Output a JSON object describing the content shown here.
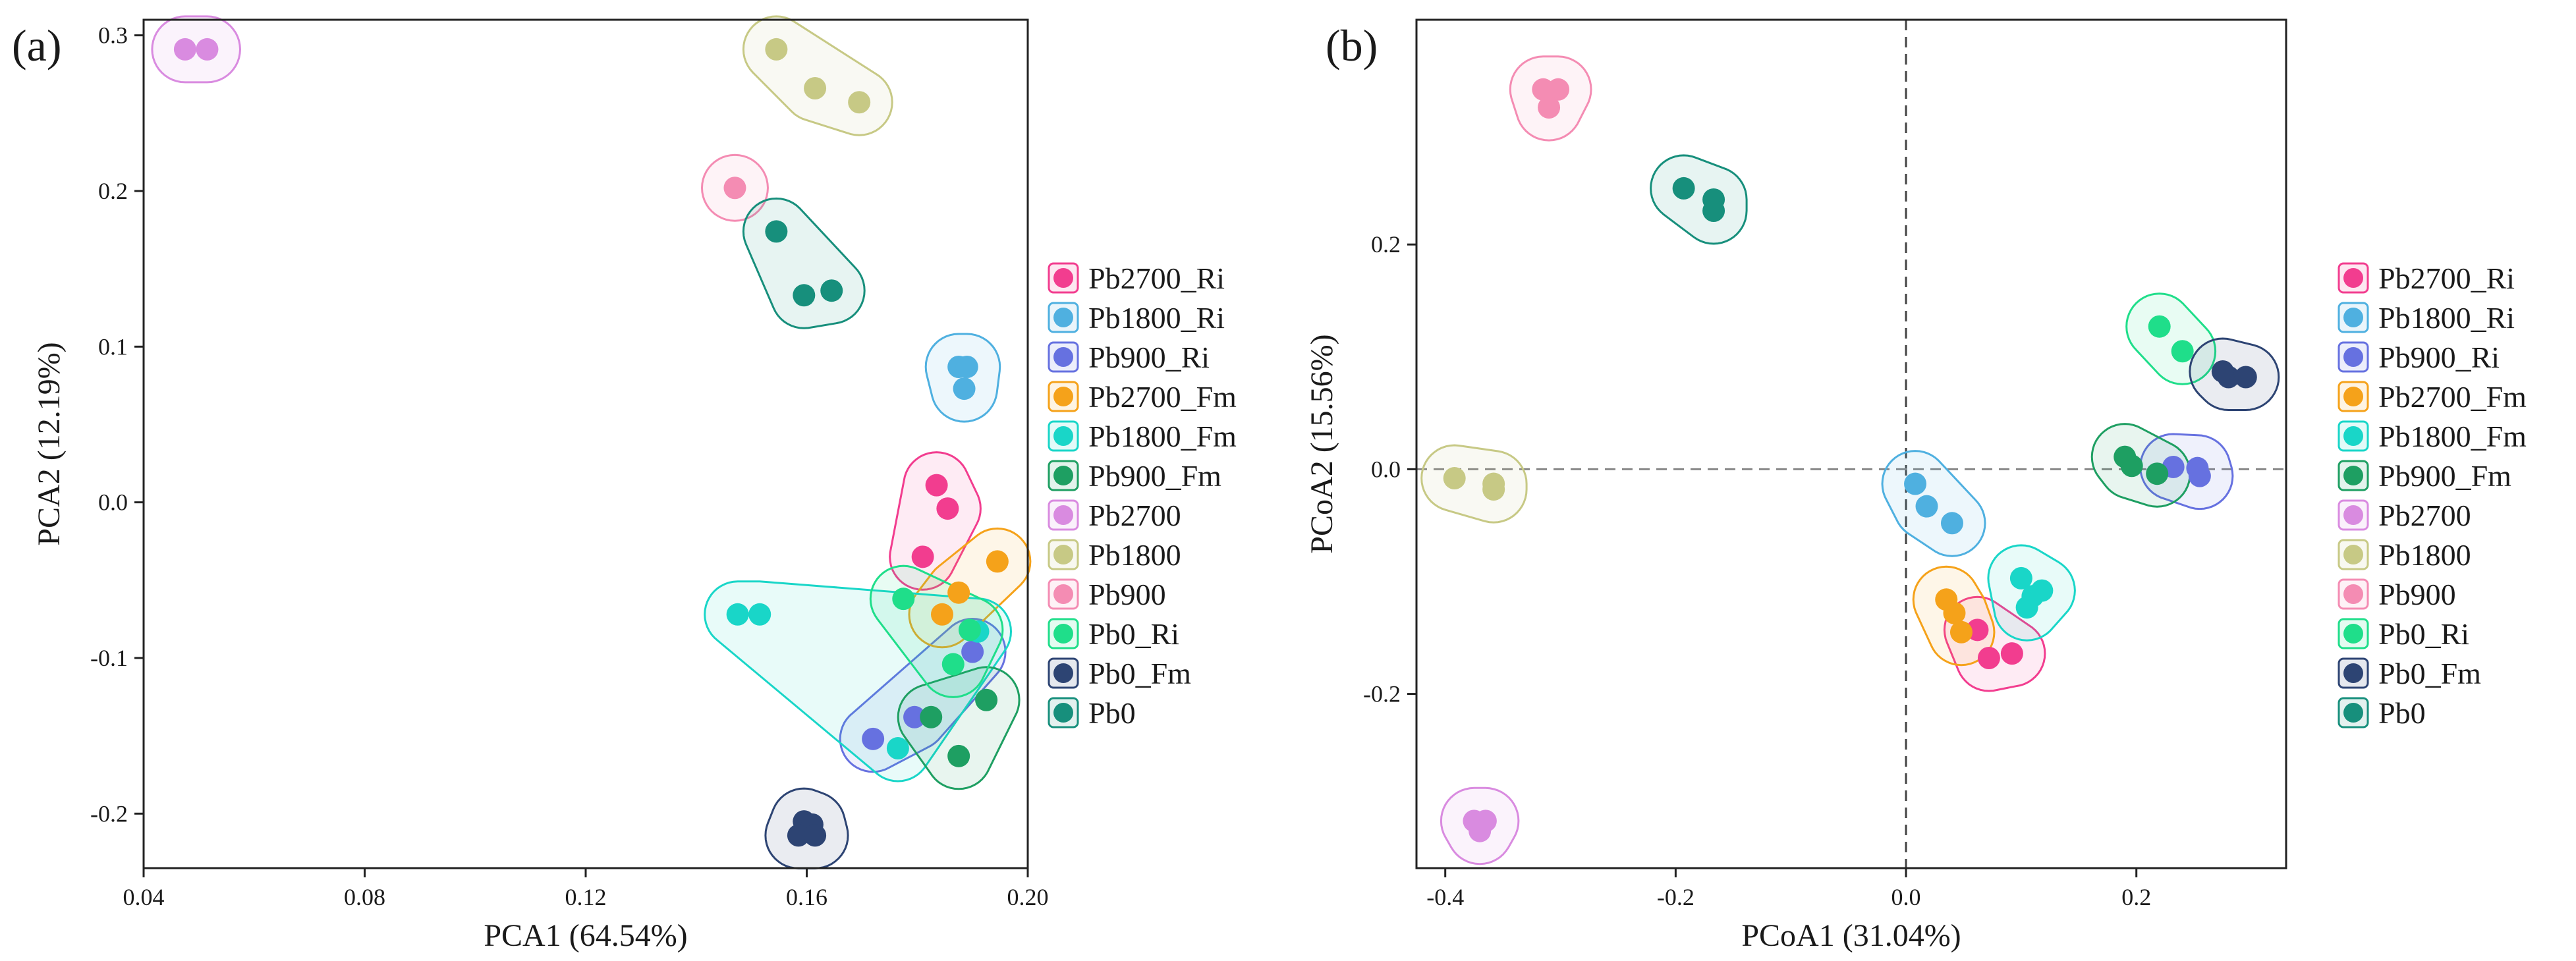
{
  "colors": {
    "Pb2700_Ri": "#f23d8f",
    "Pb1800_Ri": "#4fb0e0",
    "Pb900_Ri": "#6671e0",
    "Pb2700_Fm": "#f5a21a",
    "Pb1800_Fm": "#19d6c8",
    "Pb900_Fm": "#1e9f62",
    "Pb2700": "#d98be0",
    "Pb1800": "#c7c985",
    "Pb900": "#f48cb3",
    "Pb0_Ri": "#1fde8a",
    "Pb0_Fm": "#2d4473",
    "Pb0": "#178f7c"
  },
  "chart_data": [
    {
      "type": "scatter",
      "panel_label": "(a)",
      "xlabel": "PCA1 (64.54%)",
      "ylabel": "PCA2 (12.19%)",
      "xlim": [
        0.04,
        0.2
      ],
      "ylim": [
        -0.235,
        0.31
      ],
      "xticks": [
        0.04,
        0.08,
        0.12,
        0.16,
        0.2
      ],
      "xtick_labels": [
        "0.04",
        "0.08",
        "0.12",
        "0.16",
        "0.20"
      ],
      "yticks": [
        -0.2,
        -0.1,
        0.0,
        0.1,
        0.2,
        0.3
      ],
      "ytick_labels": [
        "-0.2",
        "-0.1",
        "0.0",
        "0.1",
        "0.2",
        "0.3"
      ],
      "reference_lines": false,
      "legend_position": "right",
      "series": [
        {
          "name": "Pb2700_Ri",
          "x": [
            0.1835,
            0.1855,
            0.181
          ],
          "y": [
            0.011,
            -0.004,
            -0.035
          ]
        },
        {
          "name": "Pb1800_Ri",
          "x": [
            0.1875,
            0.189,
            0.1885
          ],
          "y": [
            0.087,
            0.087,
            0.073
          ]
        },
        {
          "name": "Pb900_Ri",
          "x": [
            0.172,
            0.1795,
            0.19
          ],
          "y": [
            -0.152,
            -0.138,
            -0.096
          ]
        },
        {
          "name": "Pb2700_Fm",
          "x": [
            0.1945,
            0.1875,
            0.1845
          ],
          "y": [
            -0.038,
            -0.058,
            -0.072
          ]
        },
        {
          "name": "Pb1800_Fm",
          "x": [
            0.1475,
            0.1515,
            0.191,
            0.1765
          ],
          "y": [
            -0.072,
            -0.072,
            -0.083,
            -0.158
          ]
        },
        {
          "name": "Pb900_Fm",
          "x": [
            0.1925,
            0.1825,
            0.1875
          ],
          "y": [
            -0.127,
            -0.138,
            -0.163
          ]
        },
        {
          "name": "Pb2700",
          "x": [
            0.0475,
            0.0515
          ],
          "y": [
            0.291,
            0.291
          ]
        },
        {
          "name": "Pb1800",
          "x": [
            0.1545,
            0.1615,
            0.1695
          ],
          "y": [
            0.291,
            0.266,
            0.257
          ]
        },
        {
          "name": "Pb900",
          "x": [
            0.147
          ],
          "y": [
            0.202
          ]
        },
        {
          "name": "Pb0_Ri",
          "x": [
            0.1775,
            0.1865,
            0.1895
          ],
          "y": [
            -0.062,
            -0.104,
            -0.082
          ]
        },
        {
          "name": "Pb0_Fm",
          "x": [
            0.1595,
            0.161,
            0.1585,
            0.1615
          ],
          "y": [
            -0.205,
            -0.207,
            -0.214,
            -0.214
          ]
        },
        {
          "name": "Pb0",
          "x": [
            0.1545,
            0.1595,
            0.1645
          ],
          "y": [
            0.174,
            0.133,
            0.136
          ]
        }
      ]
    },
    {
      "type": "scatter",
      "panel_label": "(b)",
      "xlabel": "PCoA1 (31.04%)",
      "ylabel": "PCoA2 (15.56%)",
      "xlim": [
        -0.425,
        0.33
      ],
      "ylim": [
        -0.355,
        0.4
      ],
      "xticks": [
        -0.4,
        -0.2,
        0.0,
        0.2
      ],
      "xtick_labels": [
        "-0.4",
        "-0.2",
        "0.0",
        "0.2"
      ],
      "yticks": [
        -0.2,
        0.0,
        0.2
      ],
      "ytick_labels": [
        "-0.2",
        "0.0",
        "0.2"
      ],
      "reference_lines": true,
      "legend_position": "right",
      "series": [
        {
          "name": "Pb2700_Ri",
          "x": [
            0.062,
            0.072,
            0.092
          ],
          "y": [
            -0.143,
            -0.168,
            -0.164
          ]
        },
        {
          "name": "Pb1800_Ri",
          "x": [
            0.008,
            0.018,
            0.04
          ],
          "y": [
            -0.013,
            -0.033,
            -0.048
          ]
        },
        {
          "name": "Pb900_Ri",
          "x": [
            0.232,
            0.253,
            0.255
          ],
          "y": [
            0.002,
            0.001,
            -0.006
          ]
        },
        {
          "name": "Pb2700_Fm",
          "x": [
            0.035,
            0.042,
            0.048
          ],
          "y": [
            -0.116,
            -0.128,
            -0.145
          ]
        },
        {
          "name": "Pb1800_Fm",
          "x": [
            0.1,
            0.11,
            0.105,
            0.118
          ],
          "y": [
            -0.097,
            -0.113,
            -0.123,
            -0.108
          ]
        },
        {
          "name": "Pb900_Fm",
          "x": [
            0.19,
            0.196,
            0.218
          ],
          "y": [
            0.011,
            0.003,
            -0.004
          ]
        },
        {
          "name": "Pb2700",
          "x": [
            -0.375,
            -0.365,
            -0.37
          ],
          "y": [
            -0.313,
            -0.313,
            -0.322
          ]
        },
        {
          "name": "Pb1800",
          "x": [
            -0.392,
            -0.358,
            -0.358
          ],
          "y": [
            -0.008,
            -0.013,
            -0.018
          ]
        },
        {
          "name": "Pb900",
          "x": [
            -0.315,
            -0.302,
            -0.31
          ],
          "y": [
            0.338,
            0.338,
            0.322
          ]
        },
        {
          "name": "Pb0_Ri",
          "x": [
            0.22,
            0.24
          ],
          "y": [
            0.127,
            0.105
          ]
        },
        {
          "name": "Pb0_Fm",
          "x": [
            0.28,
            0.295,
            0.275
          ],
          "y": [
            0.082,
            0.082,
            0.087
          ]
        },
        {
          "name": "Pb0",
          "x": [
            -0.193,
            -0.167,
            -0.167
          ],
          "y": [
            0.25,
            0.24,
            0.23
          ]
        }
      ]
    }
  ],
  "legend": {
    "entries": [
      "Pb2700_Ri",
      "Pb1800_Ri",
      "Pb900_Ri",
      "Pb2700_Fm",
      "Pb1800_Fm",
      "Pb900_Fm",
      "Pb2700",
      "Pb1800",
      "Pb900",
      "Pb0_Ri",
      "Pb0_Fm",
      "Pb0"
    ]
  }
}
